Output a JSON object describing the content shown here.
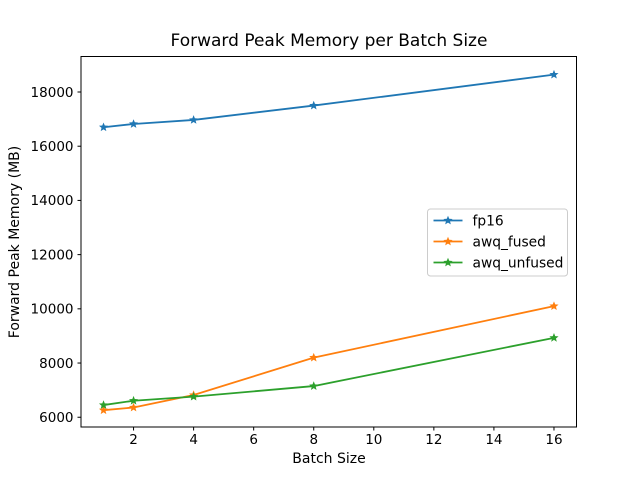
{
  "figure_background": "#ffffff",
  "chart_data": {
    "type": "line",
    "title": "Forward Peak Memory per Batch Size",
    "xlabel": "Batch Size",
    "ylabel": "Forward Peak Memory (MB)",
    "x": [
      1,
      2,
      4,
      8,
      16
    ],
    "series": [
      {
        "name": "fp16",
        "color": "#1f77b4",
        "values": [
          16700,
          16820,
          16970,
          17500,
          18640
        ]
      },
      {
        "name": "awq_fused",
        "color": "#ff7f0e",
        "values": [
          6260,
          6360,
          6820,
          8200,
          10100
        ]
      },
      {
        "name": "awq_unfused",
        "color": "#2ca02c",
        "values": [
          6450,
          6610,
          6760,
          7150,
          8930
        ]
      }
    ],
    "marker": "star",
    "xlim": [
      0.25,
      16.75
    ],
    "ylim": [
      5640,
      19310
    ],
    "xticks": [
      2,
      4,
      6,
      8,
      10,
      12,
      14,
      16
    ],
    "yticks": [
      6000,
      8000,
      10000,
      12000,
      14000,
      16000,
      18000
    ],
    "grid": false,
    "legend": {
      "position": "center-right",
      "labels": [
        "fp16",
        "awq_fused",
        "awq_unfused"
      ],
      "border_color": "#cccccc",
      "background": "#ffffff"
    },
    "axis_color": "#000000",
    "text_color": "#000000"
  }
}
